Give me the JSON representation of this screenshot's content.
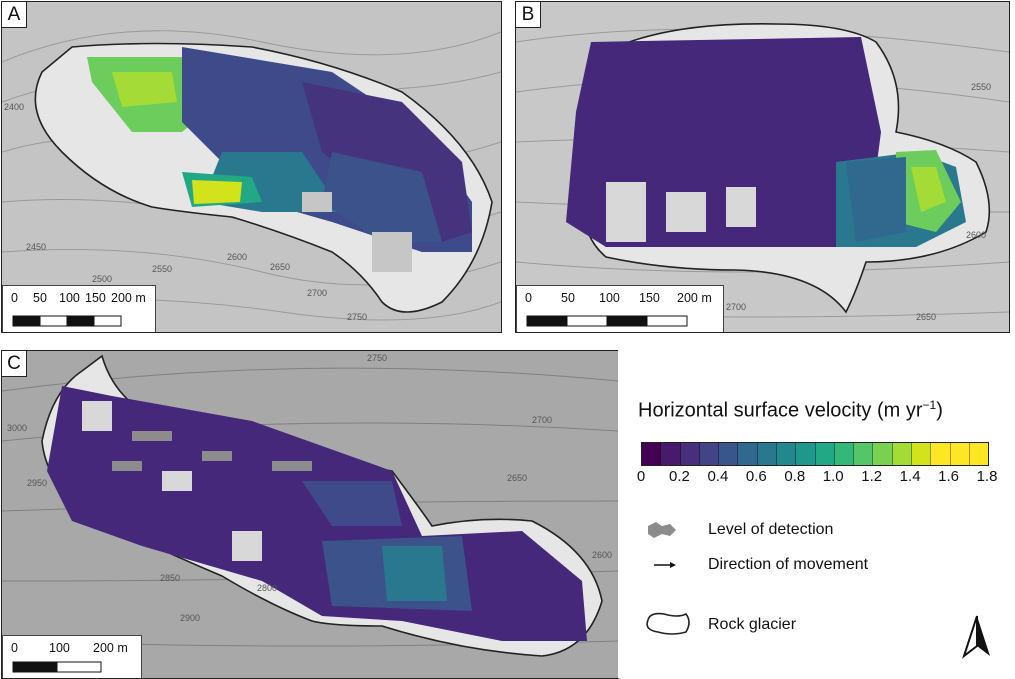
{
  "panels": [
    {
      "label": "A",
      "scale": {
        "ticks": [
          "0",
          "50",
          "100",
          "150",
          "200 m"
        ]
      },
      "contours": [
        "2400",
        "2450",
        "2500",
        "2550",
        "2600",
        "2650",
        "2700",
        "2750"
      ]
    },
    {
      "label": "B",
      "scale": {
        "ticks": [
          "0",
          "50",
          "100",
          "150",
          "200 m"
        ]
      },
      "contours": [
        "2550",
        "2600",
        "2650",
        "2700"
      ]
    },
    {
      "label": "C",
      "scale": {
        "ticks": [
          "0",
          "100",
          "200 m"
        ]
      },
      "contours": [
        "2750",
        "2700",
        "2650",
        "2600",
        "3000",
        "2950",
        "2850",
        "2800",
        "2900"
      ]
    }
  ],
  "legend": {
    "title": "Horizontal surface velocity (m yr",
    "title_sup": "−1",
    "title_end": ")",
    "colorbar": {
      "min": 0,
      "max": 1.8,
      "step": 0.1,
      "tick_labels": [
        "0",
        "0.2",
        "0.4",
        "0.6",
        "0.8",
        "1.0",
        "1.2",
        "1.4",
        "1.6",
        "1.8"
      ],
      "colors": [
        "#440154",
        "#481a6c",
        "#472f7d",
        "#414487",
        "#39568c",
        "#31688e",
        "#2a788e",
        "#23888e",
        "#1f988b",
        "#22a884",
        "#35b779",
        "#54c568",
        "#7ad151",
        "#a5db36",
        "#d2e21b",
        "#fde725",
        "#fde725",
        "#fde725"
      ]
    },
    "items": [
      {
        "label": "Level of detection",
        "color": "#8c8c8c"
      },
      {
        "label": "Direction of movement"
      },
      {
        "label": "Rock glacier"
      }
    ]
  }
}
